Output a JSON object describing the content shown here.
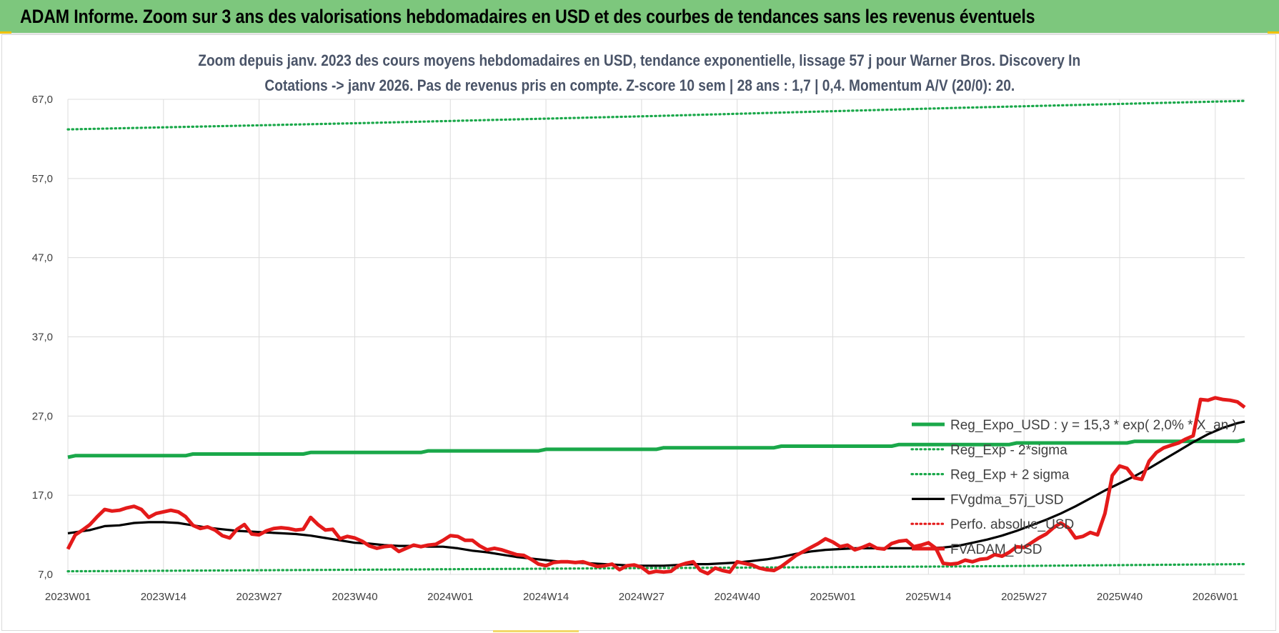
{
  "header": {
    "title": "ADAM Informe. Zoom sur 3 ans des valorisations hebdomadaires en USD et des courbes de tendances sans les revenus éventuels"
  },
  "colors": {
    "header_bg": "#7dc77d",
    "reg_expo": "#1aa84a",
    "sigma": "#1aa84a",
    "fvgdma": "#000000",
    "perfo": "#e41a1a",
    "fvadam": "#e41a1a",
    "grid": "#dcdcdc"
  },
  "chart_data": {
    "type": "line",
    "title_line1": "Zoom depuis janv. 2023 des cours moyens hebdomadaires en USD, tendance exponentielle, lissage 57 j pour Warner Bros. Discovery In",
    "title_line2": "Cotations -> janv 2026. Pas de revenus pris en compte. Z-score 10 sem | 28 ans : 1,7 | 0,4. Momentum A/V (20/0): 20.",
    "xlabel": "",
    "ylabel": "",
    "ylim": [
      7,
      67
    ],
    "yticks": [
      "7,0",
      "17,0",
      "27,0",
      "37,0",
      "47,0",
      "57,0",
      "67,0"
    ],
    "ytick_values": [
      7,
      17,
      27,
      37,
      47,
      57,
      67
    ],
    "xticks": [
      "2023W01",
      "2023W14",
      "2023W27",
      "2023W40",
      "2024W01",
      "2024W14",
      "2024W27",
      "2024W40",
      "2025W01",
      "2025W14",
      "2025W27",
      "2025W40",
      "2026W01"
    ],
    "xtick_weeks": [
      0,
      13,
      26,
      39,
      52,
      65,
      78,
      91,
      104,
      117,
      130,
      143,
      156
    ],
    "x_range_weeks": [
      0,
      160
    ],
    "grid": true,
    "legend_position": "right, above lower curves",
    "series": [
      {
        "name": "Reg_Expo_USD : y = 15,3 * exp( 2,0% * X_an )",
        "style": "solid-thick",
        "color": "#1aa84a",
        "points": [
          [
            0,
            21.8
          ],
          [
            1,
            22.0
          ],
          [
            16,
            22.0
          ],
          [
            17,
            22.2
          ],
          [
            32,
            22.2
          ],
          [
            33,
            22.4
          ],
          [
            48,
            22.4
          ],
          [
            49,
            22.6
          ],
          [
            64,
            22.6
          ],
          [
            65,
            22.8
          ],
          [
            80,
            22.8
          ],
          [
            81,
            23.0
          ],
          [
            96,
            23.0
          ],
          [
            97,
            23.2
          ],
          [
            112,
            23.2
          ],
          [
            113,
            23.4
          ],
          [
            128,
            23.4
          ],
          [
            129,
            23.6
          ],
          [
            144,
            23.6
          ],
          [
            145,
            23.8
          ],
          [
            159,
            23.8
          ],
          [
            160,
            24.0
          ]
        ]
      },
      {
        "name": "Reg_Exp - 2*sigma",
        "style": "dotted",
        "color": "#1aa84a",
        "points": [
          [
            0,
            7.4
          ],
          [
            40,
            7.6
          ],
          [
            80,
            7.8
          ],
          [
            120,
            8.0
          ],
          [
            160,
            8.3
          ]
        ]
      },
      {
        "name": "Reg_Exp + 2 sigma",
        "style": "dotted",
        "color": "#1aa84a",
        "points": [
          [
            0,
            63.2
          ],
          [
            40,
            64.0
          ],
          [
            80,
            64.9
          ],
          [
            120,
            65.9
          ],
          [
            160,
            66.8
          ]
        ]
      },
      {
        "name": "FVgdma_57j_USD",
        "style": "solid",
        "color": "#000000",
        "points": [
          [
            0,
            12.2
          ],
          [
            3,
            12.6
          ],
          [
            5,
            13.1
          ],
          [
            7,
            13.2
          ],
          [
            9,
            13.5
          ],
          [
            11,
            13.6
          ],
          [
            13,
            13.6
          ],
          [
            15,
            13.5
          ],
          [
            17,
            13.2
          ],
          [
            19,
            12.9
          ],
          [
            21,
            12.7
          ],
          [
            23,
            12.5
          ],
          [
            25,
            12.4
          ],
          [
            27,
            12.3
          ],
          [
            29,
            12.2
          ],
          [
            31,
            12.1
          ],
          [
            33,
            11.9
          ],
          [
            35,
            11.6
          ],
          [
            37,
            11.3
          ],
          [
            39,
            11.0
          ],
          [
            41,
            10.9
          ],
          [
            43,
            10.7
          ],
          [
            45,
            10.6
          ],
          [
            47,
            10.6
          ],
          [
            49,
            10.5
          ],
          [
            51,
            10.5
          ],
          [
            53,
            10.3
          ],
          [
            55,
            10.0
          ],
          [
            57,
            9.8
          ],
          [
            59,
            9.5
          ],
          [
            61,
            9.2
          ],
          [
            63,
            9.0
          ],
          [
            65,
            8.8
          ],
          [
            67,
            8.6
          ],
          [
            69,
            8.5
          ],
          [
            71,
            8.4
          ],
          [
            73,
            8.3
          ],
          [
            75,
            8.2
          ],
          [
            77,
            8.1
          ],
          [
            79,
            8.1
          ],
          [
            81,
            8.1
          ],
          [
            83,
            8.2
          ],
          [
            85,
            8.3
          ],
          [
            87,
            8.3
          ],
          [
            89,
            8.4
          ],
          [
            91,
            8.5
          ],
          [
            93,
            8.7
          ],
          [
            95,
            8.9
          ],
          [
            97,
            9.2
          ],
          [
            99,
            9.6
          ],
          [
            101,
            9.9
          ],
          [
            103,
            10.1
          ],
          [
            105,
            10.2
          ],
          [
            107,
            10.3
          ],
          [
            109,
            10.3
          ],
          [
            111,
            10.3
          ],
          [
            113,
            10.3
          ],
          [
            115,
            10.3
          ],
          [
            117,
            10.3
          ],
          [
            119,
            10.4
          ],
          [
            121,
            10.6
          ],
          [
            123,
            11.0
          ],
          [
            125,
            11.4
          ],
          [
            127,
            11.9
          ],
          [
            129,
            12.5
          ],
          [
            131,
            13.2
          ],
          [
            133,
            13.9
          ],
          [
            135,
            14.7
          ],
          [
            137,
            15.6
          ],
          [
            139,
            16.6
          ],
          [
            141,
            17.6
          ],
          [
            143,
            18.5
          ],
          [
            145,
            19.4
          ],
          [
            147,
            20.4
          ],
          [
            149,
            21.5
          ],
          [
            151,
            22.6
          ],
          [
            153,
            23.7
          ],
          [
            155,
            24.7
          ],
          [
            157,
            25.5
          ],
          [
            159,
            26.1
          ],
          [
            160,
            26.3
          ]
        ]
      },
      {
        "name": "Perfo. absolue_USD",
        "style": "dotted",
        "color": "#e41a1a",
        "points": []
      },
      {
        "name": "FVADAM_USD",
        "style": "solid-thick",
        "color": "#e41a1a",
        "points": [
          [
            0,
            10.2
          ],
          [
            1,
            12.0
          ],
          [
            2,
            12.6
          ],
          [
            3,
            13.3
          ],
          [
            4,
            14.3
          ],
          [
            5,
            15.2
          ],
          [
            6,
            15.0
          ],
          [
            7,
            15.1
          ],
          [
            8,
            15.4
          ],
          [
            9,
            15.6
          ],
          [
            10,
            15.2
          ],
          [
            11,
            14.2
          ],
          [
            12,
            14.7
          ],
          [
            13,
            14.9
          ],
          [
            14,
            15.1
          ],
          [
            15,
            14.9
          ],
          [
            16,
            14.3
          ],
          [
            17,
            13.2
          ],
          [
            18,
            12.8
          ],
          [
            19,
            13.0
          ],
          [
            20,
            12.6
          ],
          [
            21,
            11.9
          ],
          [
            22,
            11.6
          ],
          [
            23,
            12.7
          ],
          [
            24,
            13.3
          ],
          [
            25,
            12.1
          ],
          [
            26,
            12.0
          ],
          [
            27,
            12.5
          ],
          [
            28,
            12.8
          ],
          [
            29,
            12.9
          ],
          [
            30,
            12.8
          ],
          [
            31,
            12.6
          ],
          [
            32,
            12.7
          ],
          [
            33,
            14.2
          ],
          [
            34,
            13.3
          ],
          [
            35,
            12.6
          ],
          [
            36,
            12.7
          ],
          [
            37,
            11.5
          ],
          [
            38,
            11.8
          ],
          [
            39,
            11.6
          ],
          [
            40,
            11.2
          ],
          [
            41,
            10.6
          ],
          [
            42,
            10.3
          ],
          [
            43,
            10.5
          ],
          [
            44,
            10.6
          ],
          [
            45,
            9.9
          ],
          [
            46,
            10.3
          ],
          [
            47,
            10.7
          ],
          [
            48,
            10.5
          ],
          [
            49,
            10.7
          ],
          [
            50,
            10.8
          ],
          [
            51,
            11.3
          ],
          [
            52,
            11.9
          ],
          [
            53,
            11.8
          ],
          [
            54,
            11.3
          ],
          [
            55,
            11.3
          ],
          [
            56,
            10.6
          ],
          [
            57,
            10.1
          ],
          [
            58,
            10.3
          ],
          [
            59,
            10.1
          ],
          [
            60,
            9.8
          ],
          [
            61,
            9.5
          ],
          [
            62,
            9.4
          ],
          [
            63,
            8.9
          ],
          [
            64,
            8.3
          ],
          [
            65,
            8.1
          ],
          [
            66,
            8.5
          ],
          [
            67,
            8.6
          ],
          [
            68,
            8.6
          ],
          [
            69,
            8.5
          ],
          [
            70,
            8.6
          ],
          [
            71,
            8.3
          ],
          [
            72,
            8.0
          ],
          [
            73,
            8.1
          ],
          [
            74,
            8.3
          ],
          [
            75,
            7.6
          ],
          [
            76,
            8.1
          ],
          [
            77,
            8.2
          ],
          [
            78,
            7.9
          ],
          [
            79,
            7.2
          ],
          [
            80,
            7.4
          ],
          [
            81,
            7.3
          ],
          [
            82,
            7.4
          ],
          [
            83,
            8.1
          ],
          [
            84,
            8.4
          ],
          [
            85,
            8.6
          ],
          [
            86,
            7.5
          ],
          [
            87,
            7.1
          ],
          [
            88,
            7.8
          ],
          [
            89,
            7.5
          ],
          [
            90,
            7.3
          ],
          [
            91,
            8.6
          ],
          [
            92,
            8.4
          ],
          [
            93,
            8.2
          ],
          [
            94,
            7.8
          ],
          [
            95,
            7.6
          ],
          [
            96,
            7.5
          ],
          [
            97,
            8.0
          ],
          [
            98,
            8.7
          ],
          [
            99,
            9.4
          ],
          [
            100,
            9.9
          ],
          [
            101,
            10.4
          ],
          [
            102,
            10.9
          ],
          [
            103,
            11.5
          ],
          [
            104,
            11.1
          ],
          [
            105,
            10.5
          ],
          [
            106,
            10.7
          ],
          [
            107,
            10.1
          ],
          [
            108,
            10.4
          ],
          [
            109,
            10.8
          ],
          [
            110,
            10.3
          ],
          [
            111,
            10.2
          ],
          [
            112,
            10.9
          ],
          [
            113,
            11.2
          ],
          [
            114,
            11.3
          ],
          [
            115,
            10.5
          ],
          [
            116,
            10.7
          ],
          [
            117,
            11.0
          ],
          [
            118,
            10.3
          ],
          [
            119,
            8.4
          ],
          [
            120,
            8.3
          ],
          [
            121,
            8.4
          ],
          [
            122,
            8.8
          ],
          [
            123,
            8.6
          ],
          [
            124,
            8.9
          ],
          [
            125,
            9.0
          ],
          [
            126,
            9.5
          ],
          [
            127,
            9.3
          ],
          [
            128,
            9.8
          ],
          [
            129,
            10.5
          ],
          [
            130,
            10.4
          ],
          [
            131,
            11.0
          ],
          [
            132,
            11.6
          ],
          [
            133,
            12.1
          ],
          [
            134,
            12.9
          ],
          [
            135,
            13.5
          ],
          [
            136,
            12.9
          ],
          [
            137,
            11.6
          ],
          [
            138,
            11.8
          ],
          [
            139,
            12.3
          ],
          [
            140,
            12.0
          ],
          [
            141,
            14.7
          ],
          [
            142,
            19.5
          ],
          [
            143,
            20.7
          ],
          [
            144,
            20.4
          ],
          [
            145,
            19.2
          ],
          [
            146,
            19.0
          ],
          [
            147,
            21.3
          ],
          [
            148,
            22.4
          ],
          [
            149,
            23.0
          ],
          [
            150,
            23.3
          ],
          [
            151,
            23.6
          ],
          [
            152,
            24.1
          ],
          [
            153,
            24.5
          ],
          [
            154,
            29.1
          ],
          [
            155,
            29.0
          ],
          [
            156,
            29.3
          ],
          [
            157,
            29.1
          ],
          [
            158,
            29.0
          ],
          [
            159,
            28.8
          ],
          [
            160,
            28.1
          ]
        ]
      }
    ]
  }
}
